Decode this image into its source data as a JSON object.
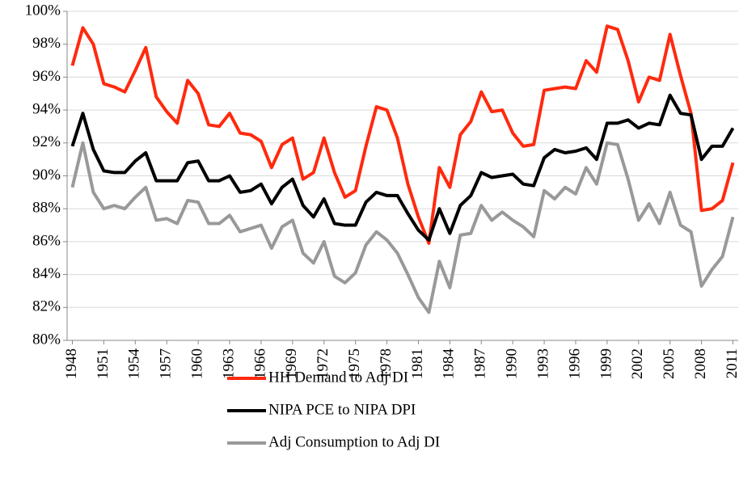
{
  "chart_data": {
    "type": "line",
    "x": [
      1948,
      1949,
      1950,
      1951,
      1952,
      1953,
      1954,
      1955,
      1956,
      1957,
      1958,
      1959,
      1960,
      1961,
      1962,
      1963,
      1964,
      1965,
      1966,
      1967,
      1968,
      1969,
      1970,
      1971,
      1972,
      1973,
      1974,
      1975,
      1976,
      1977,
      1978,
      1979,
      1980,
      1981,
      1982,
      1983,
      1984,
      1985,
      1986,
      1987,
      1988,
      1989,
      1990,
      1991,
      1992,
      1993,
      1994,
      1995,
      1996,
      1997,
      1998,
      1999,
      2000,
      2001,
      2002,
      2003,
      2004,
      2005,
      2006,
      2007,
      2008,
      2009,
      2010,
      2011
    ],
    "xlim": [
      1947.5,
      2011.5
    ],
    "xticks": [
      1948,
      1951,
      1954,
      1957,
      1960,
      1963,
      1966,
      1969,
      1972,
      1975,
      1978,
      1981,
      1984,
      1987,
      1990,
      1993,
      1996,
      1999,
      2002,
      2005,
      2008,
      2011
    ],
    "ylim": [
      80,
      100
    ],
    "yticks": [
      {
        "value": 80,
        "label": "80%"
      },
      {
        "value": 82,
        "label": "82%"
      },
      {
        "value": 84,
        "label": "84%"
      },
      {
        "value": 86,
        "label": "86%"
      },
      {
        "value": 88,
        "label": "88%"
      },
      {
        "value": 90,
        "label": "90%"
      },
      {
        "value": 92,
        "label": "92%"
      },
      {
        "value": 94,
        "label": "94%"
      },
      {
        "value": 96,
        "label": "96%"
      },
      {
        "value": 98,
        "label": "98%"
      },
      {
        "value": 100,
        "label": "100%"
      }
    ],
    "grid": true,
    "legend": "bottom",
    "series": [
      {
        "name": "HH Demand to Adj DI",
        "color": "#ff2a0e",
        "values": [
          96.7,
          99.0,
          98.0,
          95.6,
          95.4,
          95.1,
          96.4,
          97.8,
          94.8,
          93.9,
          93.2,
          95.8,
          95.0,
          93.1,
          93.0,
          93.8,
          92.6,
          92.5,
          92.1,
          90.5,
          91.9,
          92.3,
          89.8,
          90.2,
          92.3,
          90.2,
          88.7,
          89.1,
          91.8,
          94.2,
          94.0,
          92.3,
          89.5,
          87.5,
          85.9,
          90.5,
          89.3,
          92.5,
          93.3,
          95.1,
          93.9,
          94.0,
          92.6,
          91.8,
          91.9,
          95.2,
          95.3,
          95.4,
          95.3,
          97.0,
          96.3,
          99.1,
          98.9,
          97.0,
          94.5,
          96.0,
          95.8,
          98.6,
          96.1,
          93.8,
          87.9,
          88.0,
          88.5,
          90.8
        ]
      },
      {
        "name": "NIPA PCE to NIPA DPI",
        "color": "#000000",
        "values": [
          91.8,
          93.8,
          91.6,
          90.3,
          90.2,
          90.2,
          90.9,
          91.4,
          89.7,
          89.7,
          89.7,
          90.8,
          90.9,
          89.7,
          89.7,
          90.0,
          89.0,
          89.1,
          89.5,
          88.3,
          89.3,
          89.8,
          88.2,
          87.5,
          88.6,
          87.1,
          87.0,
          87.0,
          88.4,
          89.0,
          88.8,
          88.8,
          87.7,
          86.7,
          86.1,
          88.0,
          86.5,
          88.2,
          88.8,
          90.2,
          89.9,
          90.0,
          90.1,
          89.5,
          89.4,
          91.1,
          91.6,
          91.4,
          91.5,
          91.7,
          91.0,
          93.2,
          93.2,
          93.4,
          92.9,
          93.2,
          93.1,
          94.9,
          93.8,
          93.7,
          91.0,
          91.8,
          91.8,
          92.9
        ]
      },
      {
        "name": "Adj Consumption to Adj DI",
        "color": "#999999",
        "values": [
          89.3,
          92.0,
          89.0,
          88.0,
          88.2,
          88.0,
          88.7,
          89.3,
          87.3,
          87.4,
          87.1,
          88.5,
          88.4,
          87.1,
          87.1,
          87.6,
          86.6,
          86.8,
          87.0,
          85.6,
          86.9,
          87.3,
          85.3,
          84.7,
          86.0,
          83.9,
          83.5,
          84.1,
          85.8,
          86.6,
          86.1,
          85.3,
          84.0,
          82.6,
          81.7,
          84.8,
          83.2,
          86.4,
          86.5,
          88.2,
          87.3,
          87.8,
          87.3,
          86.9,
          86.3,
          89.1,
          88.6,
          89.3,
          88.9,
          90.5,
          89.5,
          92.0,
          91.9,
          89.8,
          87.3,
          88.3,
          87.1,
          89.0,
          87.0,
          86.6,
          83.3,
          84.3,
          85.1,
          87.5
        ]
      }
    ]
  }
}
